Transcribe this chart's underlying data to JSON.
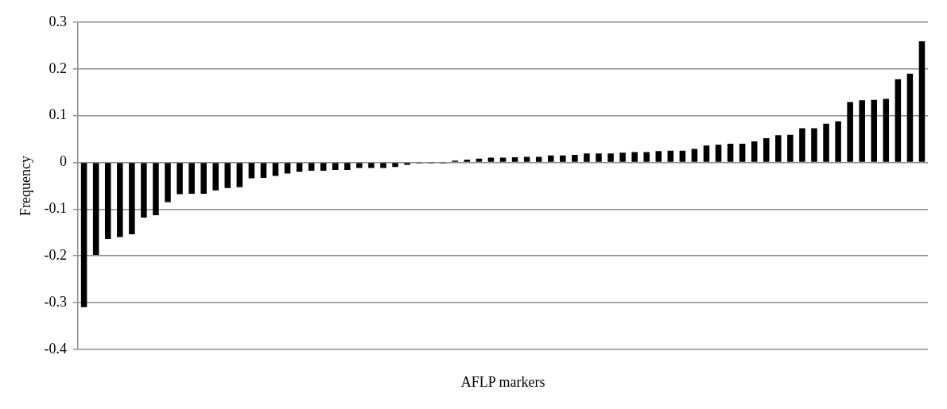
{
  "chart_data": {
    "type": "bar",
    "xlabel": "AFLP markers",
    "ylabel": "Frequency",
    "categories": [
      null,
      null,
      null,
      null,
      null,
      null,
      null,
      null,
      null,
      null,
      null,
      null,
      null,
      null,
      null,
      null,
      null,
      null,
      null,
      null,
      null,
      null,
      null,
      null,
      null,
      null,
      null,
      null,
      null,
      null,
      null,
      null,
      null,
      null,
      null,
      null,
      null,
      null,
      null,
      null,
      null,
      null,
      null,
      null,
      null,
      null,
      null,
      null,
      null,
      null,
      null,
      null,
      null,
      null,
      null,
      null,
      null,
      null,
      null,
      null,
      null,
      null,
      null,
      null,
      null,
      null,
      null,
      null,
      null,
      null,
      null
    ],
    "values": [
      -0.31,
      -0.198,
      -0.164,
      -0.16,
      -0.154,
      -0.118,
      -0.113,
      -0.085,
      -0.068,
      -0.067,
      -0.067,
      -0.06,
      -0.055,
      -0.053,
      -0.034,
      -0.033,
      -0.029,
      -0.024,
      -0.02,
      -0.018,
      -0.018,
      -0.016,
      -0.016,
      -0.012,
      -0.012,
      -0.012,
      -0.01,
      -0.005,
      -0.002,
      -0.002,
      -0.002,
      0.004,
      0.006,
      0.008,
      0.01,
      0.01,
      0.011,
      0.012,
      0.012,
      0.015,
      0.015,
      0.016,
      0.019,
      0.019,
      0.019,
      0.021,
      0.022,
      0.022,
      0.024,
      0.025,
      0.025,
      0.029,
      0.036,
      0.038,
      0.04,
      0.04,
      0.045,
      0.052,
      0.058,
      0.059,
      0.073,
      0.073,
      0.083,
      0.088,
      0.129,
      0.133,
      0.134,
      0.136,
      0.178,
      0.19,
      0.259
    ],
    "color": "#000000",
    "ylim": [
      -0.4,
      0.3
    ],
    "yticks": [
      -0.4,
      -0.3,
      -0.2,
      -0.1,
      0,
      0.1,
      0.2,
      0.3
    ],
    "grid": "y"
  }
}
